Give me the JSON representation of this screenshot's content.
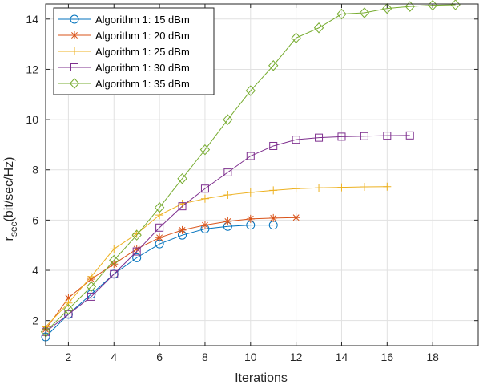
{
  "chart_data": {
    "type": "line",
    "title": "",
    "xlabel": "Iterations",
    "ylabel": {
      "main": "r",
      "sub": "sec",
      "rest": "(bit/sec/Hz)"
    },
    "xlim": [
      1,
      20
    ],
    "ylim": [
      1,
      14.6
    ],
    "xticks": [
      2,
      4,
      6,
      8,
      10,
      12,
      14,
      16,
      18
    ],
    "yticks": [
      2,
      4,
      6,
      8,
      10,
      12,
      14
    ],
    "grid": true,
    "legend_position": "top-left",
    "series": [
      {
        "name": "Algorithm 1: 15 dBm",
        "color": "#0072BD",
        "marker": "circle",
        "x": [
          1,
          2,
          3,
          4,
          5,
          6,
          7,
          8,
          9,
          10,
          11
        ],
        "y": [
          1.35,
          2.25,
          3.05,
          3.85,
          4.5,
          5.05,
          5.4,
          5.65,
          5.75,
          5.8,
          5.8
        ]
      },
      {
        "name": "Algorithm 1: 20 dBm",
        "color": "#D95319",
        "marker": "asterisk",
        "x": [
          1,
          2,
          3,
          4,
          5,
          6,
          7,
          8,
          9,
          10,
          11,
          12
        ],
        "y": [
          1.65,
          2.9,
          3.65,
          4.25,
          4.85,
          5.3,
          5.6,
          5.8,
          5.95,
          6.05,
          6.08,
          6.1
        ]
      },
      {
        "name": "Algorithm 1: 25 dBm",
        "color": "#EDB120",
        "marker": "plus",
        "x": [
          1,
          2,
          3,
          4,
          5,
          6,
          7,
          8,
          9,
          10,
          11,
          12,
          13,
          14,
          15,
          16
        ],
        "y": [
          1.75,
          2.7,
          3.75,
          4.85,
          5.45,
          6.2,
          6.65,
          6.85,
          7.0,
          7.1,
          7.18,
          7.25,
          7.28,
          7.3,
          7.32,
          7.33
        ]
      },
      {
        "name": "Algorithm 1: 30 dBm",
        "color": "#7E2F8E",
        "marker": "square",
        "x": [
          1,
          2,
          3,
          4,
          5,
          6,
          7,
          8,
          9,
          10,
          11,
          12,
          13,
          14,
          15,
          16,
          17
        ],
        "y": [
          1.55,
          2.25,
          2.95,
          3.85,
          4.75,
          5.7,
          6.55,
          7.25,
          7.9,
          8.55,
          8.95,
          9.2,
          9.28,
          9.32,
          9.34,
          9.36,
          9.37
        ]
      },
      {
        "name": "Algorithm 1: 35 dBm",
        "color": "#77AC30",
        "marker": "diamond",
        "x": [
          1,
          2,
          3,
          4,
          5,
          6,
          7,
          8,
          9,
          10,
          11,
          12,
          13,
          14,
          15,
          16,
          17,
          18,
          19
        ],
        "y": [
          1.55,
          2.45,
          3.35,
          4.4,
          5.4,
          6.5,
          7.65,
          8.8,
          10.0,
          11.15,
          12.15,
          13.25,
          13.65,
          14.2,
          14.25,
          14.42,
          14.5,
          14.55,
          14.57
        ]
      }
    ]
  }
}
